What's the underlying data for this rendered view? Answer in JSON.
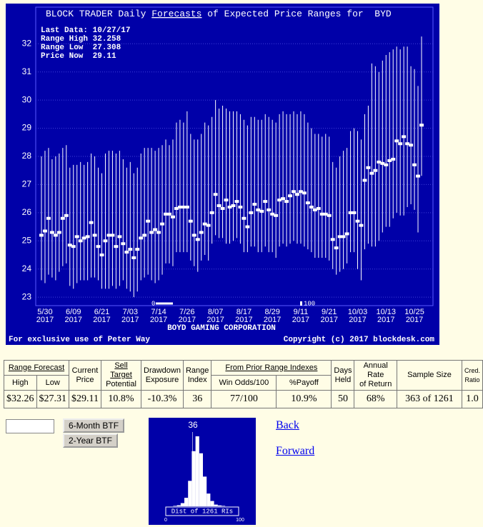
{
  "chart_data": [
    {
      "type": "range",
      "title_prefix": "BLOCK TRADER Daily ",
      "title_link": "Forecasts",
      "title_suffix": " of Expected Price Ranges for  BYD",
      "info": [
        "Last Data: 10/27/17",
        "Range High 32.258",
        "Range Low  27.308",
        "Price Now  29.11"
      ],
      "company": "BOYD GAMING CORPORATION",
      "footer_left": "For exclusive use of Peter Way",
      "footer_right": "Copyright (c) 2017 blockdesk.com",
      "ri_scale": [
        0,
        100
      ],
      "categories": [
        null,
        "5/30 2017",
        null,
        null,
        null,
        null,
        null,
        null,
        null,
        "6/09 2017",
        null,
        null,
        null,
        null,
        null,
        null,
        null,
        "6/21 2017",
        null,
        null,
        null,
        null,
        null,
        null,
        null,
        "7/03 2017",
        null,
        null,
        null,
        null,
        null,
        null,
        null,
        "7/14 2017",
        null,
        null,
        null,
        null,
        null,
        null,
        null,
        "7/26 2017",
        null,
        null,
        null,
        null,
        null,
        null,
        null,
        "8/07 2017",
        null,
        null,
        null,
        null,
        null,
        null,
        null,
        "8/17 2017",
        null,
        null,
        null,
        null,
        null,
        null,
        null,
        "8/29 2017",
        null,
        null,
        null,
        null,
        null,
        null,
        null,
        "9/11 2017",
        null,
        null,
        null,
        null,
        null,
        null,
        null,
        "9/21 2017",
        null,
        null,
        null,
        null,
        null,
        null,
        null,
        "10/03 2017",
        null,
        null,
        null,
        null,
        null,
        null,
        null,
        "10/13 2017",
        null,
        null,
        null,
        null,
        null,
        null,
        null,
        "10/25 2017",
        null,
        null
      ],
      "high": [
        28.0,
        28.2,
        28.3,
        27.9,
        28.0,
        28.1,
        28.3,
        28.4,
        27.6,
        27.7,
        27.7,
        27.8,
        27.7,
        27.8,
        28.1,
        28.0,
        27.6,
        27.4,
        28.1,
        28.2,
        28.2,
        28.1,
        28.2,
        27.9,
        27.6,
        27.8,
        27.4,
        27.6,
        28.1,
        28.3,
        28.3,
        28.3,
        28.2,
        28.3,
        28.4,
        28.6,
        28.4,
        28.6,
        29.2,
        29.3,
        29.2,
        29.6,
        28.8,
        28.6,
        28.6,
        28.8,
        29.2,
        29.1,
        29.4,
        30.0,
        29.7,
        29.8,
        29.7,
        29.6,
        29.6,
        29.6,
        29.5,
        29.3,
        29.1,
        29.4,
        29.4,
        29.3,
        29.3,
        29.5,
        29.4,
        29.3,
        29.2,
        29.5,
        29.6,
        29.5,
        29.5,
        29.6,
        29.5,
        29.6,
        29.5,
        29.2,
        29.0,
        28.8,
        28.8,
        28.7,
        28.8,
        28.7,
        27.8,
        27.6,
        28.0,
        28.2,
        28.3,
        28.9,
        29.0,
        28.9,
        28.6,
        29.5,
        29.8,
        31.3,
        31.2,
        31.0,
        31.4,
        31.6,
        31.7,
        31.8,
        31.9,
        31.8,
        31.9,
        31.9,
        31.2,
        31.1,
        30.5,
        32.258
      ],
      "low": [
        23.6,
        23.5,
        23.8,
        23.7,
        23.6,
        23.9,
        24.1,
        24.2,
        23.4,
        23.3,
        23.5,
        23.6,
        23.6,
        23.6,
        23.7,
        23.7,
        23.6,
        23.3,
        23.3,
        23.3,
        23.4,
        23.3,
        23.4,
        23.6,
        23.3,
        23.2,
        23.0,
        23.2,
        23.6,
        23.7,
        23.8,
        23.6,
        23.5,
        23.6,
        23.8,
        24.2,
        24.2,
        24.1,
        24.6,
        24.6,
        24.6,
        24.6,
        24.3,
        24.1,
        23.9,
        24.3,
        24.5,
        24.3,
        24.9,
        25.2,
        25.1,
        25.1,
        24.9,
        24.9,
        25.0,
        25.1,
        24.9,
        24.6,
        24.6,
        24.8,
        24.8,
        24.6,
        24.6,
        24.8,
        24.6,
        24.6,
        24.4,
        24.8,
        24.9,
        24.8,
        24.9,
        25.0,
        24.9,
        24.9,
        24.8,
        24.7,
        24.6,
        24.4,
        24.4,
        24.4,
        24.4,
        24.3,
        24.0,
        23.8,
        23.9,
        24.0,
        24.2,
        24.6,
        24.6,
        24.0,
        23.6,
        24.7,
        24.9,
        24.8,
        24.8,
        25.0,
        25.3,
        25.5,
        25.5,
        25.8,
        26.0,
        25.9,
        25.9,
        26.2,
        26.3,
        26.1,
        25.3,
        27.308
      ],
      "price": [
        25.2,
        25.35,
        25.8,
        25.3,
        25.2,
        25.3,
        25.8,
        25.9,
        24.85,
        24.8,
        25.15,
        25.0,
        25.1,
        25.15,
        25.65,
        25.2,
        24.8,
        24.5,
        25.0,
        25.2,
        25.2,
        24.8,
        25.15,
        24.9,
        24.6,
        24.7,
        24.4,
        24.7,
        25.1,
        25.2,
        25.7,
        25.3,
        25.4,
        25.3,
        25.6,
        25.95,
        25.95,
        25.85,
        26.15,
        26.2,
        26.2,
        26.2,
        25.7,
        25.2,
        25.05,
        25.3,
        25.6,
        25.55,
        26.0,
        26.65,
        26.25,
        26.15,
        26.45,
        26.2,
        26.25,
        26.4,
        26.2,
        25.8,
        25.5,
        26.0,
        26.3,
        26.1,
        26.05,
        26.4,
        26.1,
        25.95,
        25.9,
        26.45,
        26.5,
        26.4,
        26.6,
        26.75,
        26.65,
        26.75,
        26.7,
        26.35,
        26.2,
        26.1,
        26.15,
        25.95,
        25.95,
        25.9,
        25.05,
        24.75,
        25.15,
        25.15,
        25.25,
        26.0,
        26.0,
        25.7,
        25.55,
        27.15,
        27.6,
        27.4,
        27.5,
        27.8,
        27.75,
        27.7,
        27.85,
        27.9,
        28.55,
        28.45,
        28.7,
        28.45,
        28.4,
        27.7,
        27.3,
        29.11
      ],
      "color": "#ffffff",
      "ylim": [
        22.7,
        33.3
      ],
      "yticks": [
        23,
        24,
        25,
        26,
        27,
        28,
        29,
        30,
        31,
        32
      ],
      "grid": true
    },
    {
      "type": "histogram",
      "marker_value": 36,
      "caption": "Dist of 1261 RIs",
      "bins": [
        0,
        5,
        10,
        15,
        20,
        25,
        30,
        35,
        40,
        45,
        50,
        55,
        60,
        65,
        70,
        75,
        80,
        85,
        90,
        95,
        100
      ],
      "counts": [
        0,
        0,
        2,
        5,
        15,
        40,
        120,
        260,
        330,
        250,
        140,
        60,
        25,
        8,
        4,
        2,
        0,
        0,
        0,
        0
      ],
      "color": "#ffffff",
      "xlim": [
        0,
        100
      ],
      "xticks": [
        0,
        100
      ]
    }
  ],
  "table": {
    "group_headers": [
      "Range Forecast",
      "From Prior Range Indexes"
    ],
    "sub_headers": [
      "High",
      "Low",
      "Win Odds/100",
      "%Payoff"
    ],
    "headers": [
      [
        "Current",
        "Price"
      ],
      [
        "Sell Target",
        "Potential"
      ],
      [
        "Drawdown",
        "Exposure"
      ],
      [
        "Range",
        "Index"
      ],
      [
        "Days",
        "Held"
      ],
      [
        "Annual Rate",
        "of Return"
      ],
      [
        "Sample Size"
      ],
      [
        "Cred.",
        "Ratio"
      ]
    ],
    "row": [
      "$32.26",
      "$27.31",
      "$29.11",
      "10.8%",
      "-10.3%",
      "36",
      "77/100",
      "10.9%",
      "50",
      "68%",
      "363 of 1261",
      "1.0"
    ]
  },
  "controls": {
    "buttons": [
      "6-Month BTF",
      "2-Year BTF"
    ]
  },
  "links": [
    "Back",
    "Forward"
  ]
}
